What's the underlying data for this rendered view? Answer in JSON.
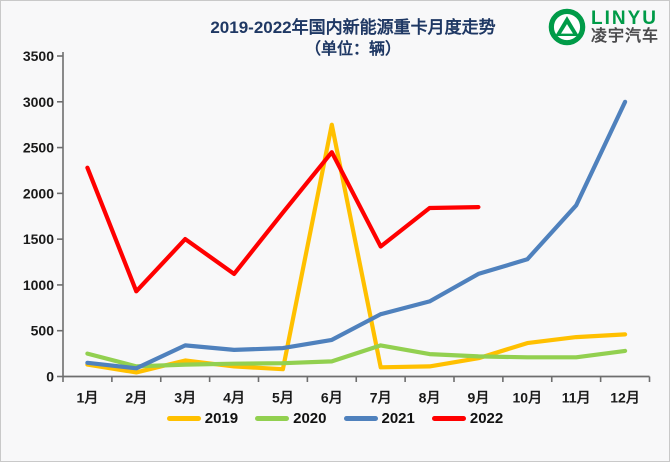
{
  "page": {
    "background": "#f8f8f9",
    "border_color": "#c9c9c9"
  },
  "header": {
    "title": "2019-2022年国内新能源重卡月度走势",
    "subtitle": "（单位：辆）",
    "title_color": "#1f3864"
  },
  "logo": {
    "brand": "LINYU",
    "brand_cn": "凌宇汽车",
    "green": "#009b48",
    "text_color": "#4b4b4d"
  },
  "chart_data": {
    "type": "line",
    "title": "2019-2022年国内新能源重卡月度走势",
    "subtitle": "（单位：辆）",
    "categories": [
      "1月",
      "2月",
      "3月",
      "4月",
      "5月",
      "6月",
      "7月",
      "8月",
      "9月",
      "10月",
      "11月",
      "12月"
    ],
    "xlabel": "",
    "ylabel": "",
    "ylim": [
      0,
      3500
    ],
    "yticks": [
      0,
      500,
      1000,
      1500,
      2000,
      2500,
      3000,
      3500
    ],
    "grid": false,
    "legend_position": "bottom",
    "axis_color": "#6e6e6e",
    "tick_label_color": "#1a1a1a",
    "series": [
      {
        "name": "2019",
        "color": "#FFC000",
        "values": [
          130,
          45,
          175,
          110,
          80,
          2750,
          100,
          110,
          200,
          365,
          430,
          460
        ]
      },
      {
        "name": "2020",
        "color": "#92D050",
        "values": [
          250,
          110,
          130,
          140,
          145,
          165,
          340,
          245,
          220,
          210,
          210,
          280
        ]
      },
      {
        "name": "2021",
        "color": "#4F81BD",
        "values": [
          150,
          90,
          340,
          290,
          310,
          400,
          680,
          820,
          1120,
          1280,
          1870,
          3000
        ]
      },
      {
        "name": "2022",
        "color": "#FF0000",
        "values": [
          2280,
          930,
          1500,
          1120,
          1790,
          2450,
          1420,
          1840,
          1850
        ]
      }
    ]
  }
}
